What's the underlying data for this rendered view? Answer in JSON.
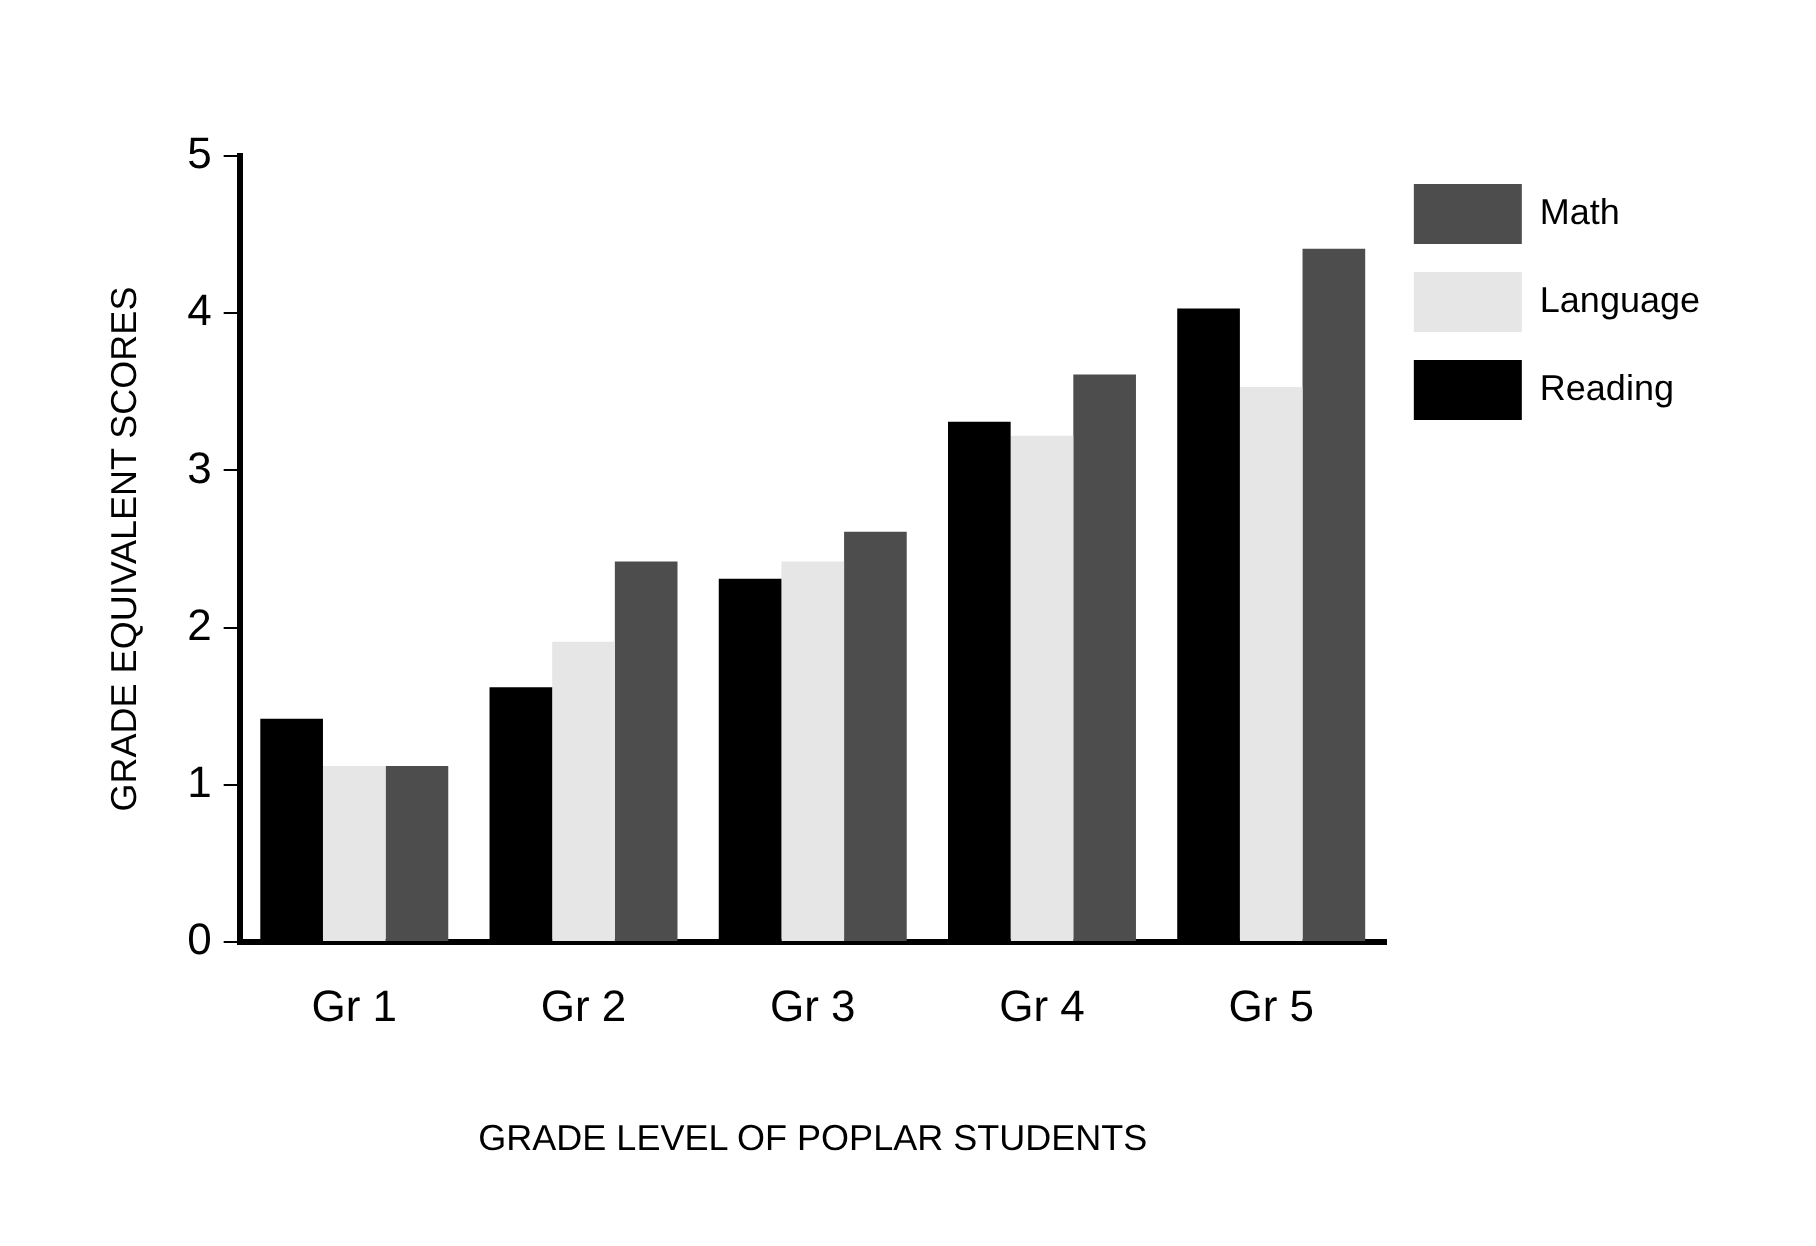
{
  "chart_data": {
    "type": "bar",
    "xlabel": "GRADE LEVEL OF POPLAR STUDENTS",
    "ylabel": "GRADE EQUIVALENT SCORES",
    "categories": [
      "Gr 1",
      "Gr 2",
      "Gr 3",
      "Gr 4",
      "Gr 5"
    ],
    "series": [
      {
        "name": "Reading",
        "color": "#000000",
        "values": [
          1.42,
          1.62,
          2.31,
          3.31,
          4.03
        ]
      },
      {
        "name": "Language",
        "color": "#e6e6e6",
        "values": [
          1.12,
          1.91,
          2.42,
          3.22,
          3.53
        ]
      },
      {
        "name": "Math",
        "color": "#4d4d4d",
        "values": [
          1.12,
          2.42,
          2.61,
          3.61,
          4.41
        ]
      }
    ],
    "ylim": [
      0,
      5
    ],
    "yticks": [
      0,
      1,
      2,
      3,
      4,
      5
    ],
    "grid": false,
    "legend": "top right"
  }
}
